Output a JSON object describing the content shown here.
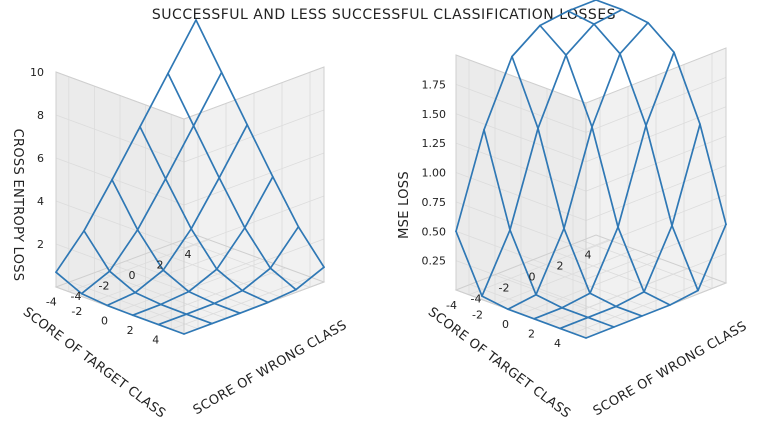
{
  "title": "SUCCESSFUL AND LESS SUCCESSFUL CLASSIFICATION LOSSES",
  "colors": {
    "wire": "#2f78b5",
    "grid": "#dcdcdc",
    "pane": "#f4f4f4"
  },
  "chart_data": [
    {
      "type": "surface-wireframe",
      "title": "",
      "xlabel": "SCORE OF WRONG CLASS",
      "ylabel": "SCORE OF TARGET CLASS",
      "zlabel": "CROSS ENTROPY LOSS",
      "x": [
        -5,
        -3,
        -1,
        1,
        3,
        5
      ],
      "y": [
        -5,
        -3,
        -1,
        1,
        3,
        5
      ],
      "x_ticks": [
        "-4",
        "-2",
        "0",
        "2",
        "4"
      ],
      "y_ticks": [
        "-4",
        "-2",
        "0",
        "2",
        "4"
      ],
      "z_ticks": [
        "2",
        "4",
        "6",
        "8",
        "10"
      ],
      "xlim": [
        -5,
        5
      ],
      "ylim": [
        -5,
        5
      ],
      "zlim": [
        0,
        10
      ],
      "z": [
        [
          0.69,
          2.13,
          4.02,
          6.0,
          8.0,
          10.0
        ],
        [
          0.13,
          0.69,
          2.13,
          4.02,
          6.0,
          8.0
        ],
        [
          0.02,
          0.13,
          0.69,
          2.13,
          4.02,
          6.0
        ],
        [
          0.0,
          0.02,
          0.13,
          0.69,
          2.13,
          4.02
        ],
        [
          0.0,
          0.0,
          0.02,
          0.13,
          0.69,
          2.13
        ],
        [
          0.0,
          0.0,
          0.0,
          0.02,
          0.13,
          0.69
        ]
      ],
      "grid": true
    },
    {
      "type": "surface-wireframe",
      "title": "",
      "xlabel": "SCORE OF WRONG CLASS",
      "ylabel": "SCORE OF TARGET CLASS",
      "zlabel": "MSE LOSS",
      "x": [
        -5,
        -3,
        -1,
        1,
        3,
        5
      ],
      "y": [
        -5,
        -3,
        -1,
        1,
        3,
        5
      ],
      "x_ticks": [
        "-4",
        "-2",
        "0",
        "2",
        "4"
      ],
      "y_ticks": [
        "-4",
        "-2",
        "0",
        "2",
        "4"
      ],
      "z_ticks": [
        "0.25",
        "0.50",
        "0.75",
        "1.00",
        "1.25",
        "1.50",
        "1.75"
      ],
      "xlim": [
        -5,
        5
      ],
      "ylim": [
        -5,
        5
      ],
      "zlim": [
        0,
        2
      ],
      "z": [
        [
          0.5,
          1.27,
          1.8,
          1.97,
          2.0,
          2.0
        ],
        [
          0.03,
          0.5,
          1.27,
          1.8,
          1.97,
          2.0
        ],
        [
          0.0,
          0.03,
          0.5,
          1.27,
          1.8,
          1.97
        ],
        [
          0.0,
          0.0,
          0.03,
          0.5,
          1.27,
          1.8
        ],
        [
          0.0,
          0.0,
          0.0,
          0.03,
          0.5,
          1.27
        ],
        [
          0.0,
          0.0,
          0.0,
          0.0,
          0.03,
          0.5
        ]
      ],
      "grid": true
    }
  ]
}
